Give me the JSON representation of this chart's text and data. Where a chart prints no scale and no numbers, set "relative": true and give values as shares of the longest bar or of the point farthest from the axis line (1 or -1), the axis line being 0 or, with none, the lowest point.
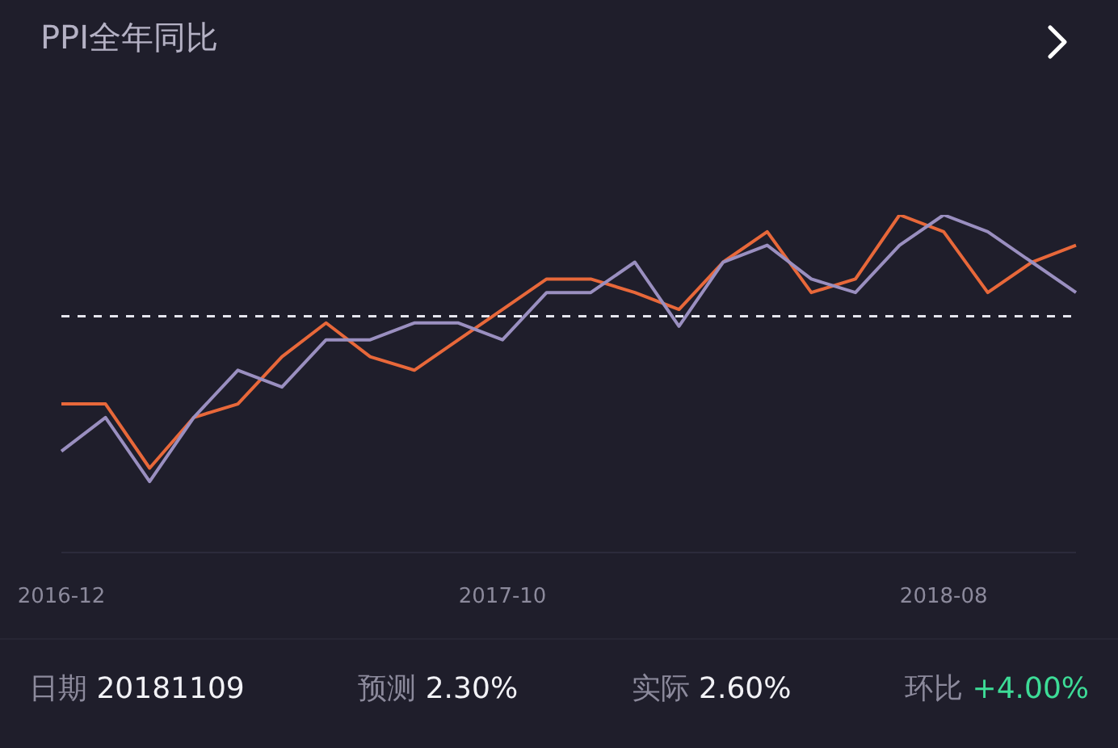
{
  "chart_data": {
    "type": "line",
    "title": "PPI全年同比",
    "relative": true,
    "categories": [
      "2016-12",
      null,
      null,
      null,
      null,
      null,
      null,
      null,
      null,
      null,
      "2017-10",
      null,
      null,
      null,
      null,
      null,
      null,
      null,
      null,
      null,
      "2018-08",
      null,
      null,
      null
    ],
    "series": [
      {
        "color": "#e8683a",
        "values": [
          0.44,
          0.44,
          0.25,
          0.4,
          0.44,
          0.58,
          0.68,
          0.58,
          0.54,
          0.63,
          0.72,
          0.81,
          0.81,
          0.77,
          0.72,
          0.86,
          0.95,
          0.77,
          0.81,
          1.0,
          0.95,
          0.77,
          0.86,
          0.91
        ]
      },
      {
        "color": "#9a8fc0",
        "values": [
          0.3,
          0.4,
          0.21,
          0.4,
          0.54,
          0.49,
          0.63,
          0.63,
          0.68,
          0.68,
          0.63,
          0.77,
          0.77,
          0.86,
          0.67,
          0.86,
          0.91,
          0.81,
          0.77,
          0.91,
          1.0,
          0.95,
          0.86,
          0.77
        ]
      }
    ],
    "ref_lines": [
      {
        "axis": "y",
        "value": 0.7,
        "color": "#e6e6ee",
        "line_style": "dashed"
      }
    ],
    "annotations": [
      "日期 20181109",
      "预测 2.30%",
      "实际 2.60%",
      "环比 +4.00%"
    ]
  }
}
